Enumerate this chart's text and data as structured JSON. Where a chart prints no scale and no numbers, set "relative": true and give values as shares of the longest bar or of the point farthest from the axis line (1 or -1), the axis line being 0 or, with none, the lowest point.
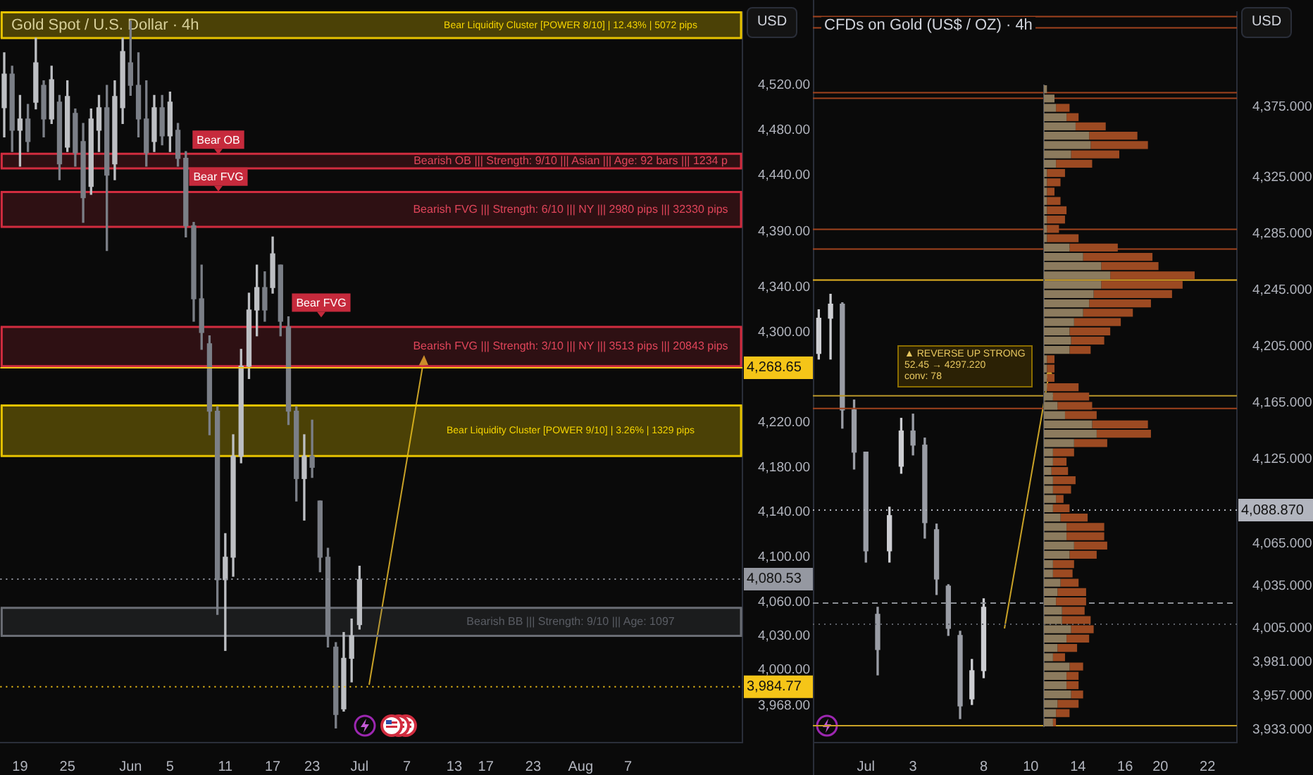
{
  "chart_data": [
    {
      "type": "candlestick",
      "title": "Gold Spot / U.S. Dollar · 4h",
      "ylabel": "USD",
      "colors": [
        "#bdbfc3",
        "#7b7f87",
        "#bdbfc3",
        "#7b7f87",
        "#bdbfc3",
        "#7b7f87",
        "#bdbfc3",
        "#7b7f87",
        "#bdbfc3",
        "#7b7f87",
        "#7b7f87",
        "#bdbfc3",
        "#bdbfc3",
        "#7b7f87",
        "#bdbfc3",
        "#bdbfc3",
        "#7b7f87",
        "#7b7f87",
        "#7b7f87",
        "#bdbfc3",
        "#7b7f87",
        "#bdbfc3",
        "#7b7f87",
        "#7b7f87",
        "#7b7f87",
        "#7b7f87",
        "#7b7f87",
        "#7b7f87",
        "#bdbfc3",
        "#bdbfc3",
        "#bdbfc3",
        "#bdbfc3",
        "#bdbfc3",
        "#7b7f87",
        "#bdbfc3",
        "#7b7f87",
        "#7b7f87",
        "#7b7f87",
        "#bdbfc3",
        "#7b7f87",
        "#7b7f87",
        "#7b7f87",
        "#7b7f87",
        "#bdbfc3",
        "#bdbfc3",
        "#bdbfc3",
        null,
        null,
        null,
        null,
        null,
        null,
        null,
        null,
        null,
        null,
        null,
        null,
        null,
        null,
        null,
        null,
        null,
        null,
        null,
        null,
        null,
        null,
        null,
        null,
        null,
        null,
        null,
        null,
        null,
        null,
        null,
        null,
        null,
        null,
        null,
        null,
        null,
        null,
        null,
        null,
        null,
        null,
        null,
        null,
        null,
        null,
        null,
        null
      ],
      "categories": [
        null,
        null,
        "19",
        null,
        null,
        null,
        null,
        null,
        "25",
        null,
        null,
        null,
        null,
        null,
        null,
        null,
        "Jun",
        null,
        null,
        null,
        null,
        "5",
        null,
        null,
        null,
        null,
        null,
        null,
        "11",
        null,
        null,
        null,
        null,
        null,
        "17",
        null,
        null,
        null,
        null,
        "23",
        null,
        null,
        null,
        null,
        null,
        "Jul",
        null,
        null,
        null,
        null,
        null,
        "7",
        null,
        null,
        null,
        null,
        null,
        "13",
        null,
        null,
        null,
        "17",
        null,
        null,
        null,
        null,
        null,
        "23",
        null,
        null,
        null,
        null,
        null,
        "Aug",
        null,
        null,
        null,
        null,
        null,
        "7",
        null,
        null,
        null,
        null,
        null,
        null,
        null,
        null,
        null,
        null,
        null,
        null,
        null,
        null
      ],
      "ohlc": [
        [
          4500,
          4549,
          4474,
          4530
        ],
        [
          4530,
          4537,
          4461,
          4480
        ],
        [
          4480,
          4511,
          4448,
          4490
        ],
        [
          4490,
          4503,
          4461,
          4470
        ],
        [
          4505,
          4562,
          4499,
          4540
        ],
        [
          4520,
          4524,
          4474,
          4490
        ],
        [
          4490,
          4537,
          4486,
          4525
        ],
        [
          4505,
          4511,
          4436,
          4450
        ],
        [
          4465,
          4524,
          4461,
          4510
        ],
        [
          4495,
          4499,
          4448,
          4460
        ],
        [
          4470,
          4486,
          4398,
          4420
        ],
        [
          4430,
          4499,
          4423,
          4490
        ],
        [
          4480,
          4511,
          4461,
          4500
        ],
        [
          4500,
          4520,
          4373,
          4440
        ],
        [
          4450,
          4524,
          4436,
          4510
        ],
        [
          4500,
          4562,
          4486,
          4550
        ],
        [
          4540,
          4577,
          4511,
          4520
        ],
        [
          4520,
          4549,
          4474,
          4490
        ],
        [
          4490,
          4524,
          4448,
          4460
        ],
        [
          4470,
          4511,
          4461,
          4500
        ],
        [
          4500,
          4511,
          4467,
          4475
        ],
        [
          4475,
          4514,
          4461,
          4505
        ],
        [
          4480,
          4486,
          4448,
          4455
        ],
        [
          4455,
          4461,
          4385,
          4395
        ],
        [
          4395,
          4398,
          4310,
          4330
        ],
        [
          4330,
          4360,
          4285,
          4300
        ],
        [
          4290,
          4297,
          4209,
          4230
        ],
        [
          4230,
          4234,
          4049,
          4080
        ],
        [
          4080,
          4121,
          4017,
          4100
        ],
        [
          4100,
          4209,
          4083,
          4190
        ],
        [
          4190,
          4285,
          4184,
          4270
        ],
        [
          4270,
          4335,
          4259,
          4320
        ],
        [
          4320,
          4360,
          4297,
          4340
        ],
        [
          4340,
          4354,
          4310,
          4320
        ],
        [
          4340,
          4385,
          4335,
          4370
        ],
        [
          4360,
          4360,
          4297,
          4310
        ],
        [
          4305,
          4314,
          4218,
          4230
        ],
        [
          4230,
          4234,
          4150,
          4170
        ],
        [
          4170,
          4209,
          4133,
          4190
        ],
        [
          4190,
          4222,
          4171,
          4180
        ],
        [
          4150,
          4150,
          4087,
          4100
        ],
        [
          4100,
          4108,
          4020,
          4030
        ],
        [
          4020,
          4024,
          3948,
          3960
        ],
        [
          3965,
          4033,
          3963,
          4010
        ],
        [
          4010,
          4045,
          3989,
          4030
        ],
        [
          4040,
          4092,
          4036,
          4080
        ],
        null,
        null,
        null,
        null,
        null,
        null,
        null,
        null,
        null,
        null,
        null,
        null,
        null,
        null,
        null,
        null,
        null,
        null,
        null,
        null,
        null,
        null,
        null,
        null,
        null,
        null,
        null,
        null,
        null,
        null,
        null,
        null,
        null,
        null,
        null,
        null,
        null,
        null,
        null,
        null,
        null,
        null,
        null,
        null,
        null,
        null,
        null,
        null
      ],
      "ylim": [
        3935,
        4585
      ],
      "yticks": [
        {
          "value": 3968,
          "label": "3,968.00"
        },
        {
          "value": 4000,
          "label": "4,000.00"
        },
        {
          "value": 4030,
          "label": "4,030.00"
        },
        {
          "value": 4060,
          "label": "4,060.00"
        },
        {
          "value": 4100,
          "label": "4,100.00"
        },
        {
          "value": 4140,
          "label": "4,140.00"
        },
        {
          "value": 4180,
          "label": "4,180.00"
        },
        {
          "value": 4220,
          "label": "4,220.00"
        },
        {
          "value": 4300,
          "label": "4,300.00"
        },
        {
          "value": 4340,
          "label": "4,340.00"
        },
        {
          "value": 4390,
          "label": "4,390.00"
        },
        {
          "value": 4440,
          "label": "4,440.00"
        },
        {
          "value": 4480,
          "label": "4,480.00"
        },
        {
          "value": 4520,
          "label": "4,520.00"
        }
      ],
      "bands": [
        {
          "axis": "y",
          "from": 4562,
          "to": 4585,
          "label": "Bear Liquidity Cluster [POWER 8/10] | 12.43% | 5072 pips",
          "color": "#e6c200"
        },
        {
          "axis": "y",
          "from": 4446,
          "to": 4459,
          "label": "Bearish OB ||| Strength: 9/10 ||| Asian ||| Age: 92 bars ||| 1234 p",
          "color": "#d12c3f"
        },
        {
          "axis": "y",
          "from": 4394,
          "to": 4425,
          "label": "Bearish FVG ||| Strength: 6/10 ||| NY ||| 2980 pips ||| 32330 pips",
          "color": "#d12c3f"
        },
        {
          "axis": "y",
          "from": 4270,
          "to": 4305,
          "label": "Bearish FVG ||| Strength: 3/10 ||| NY ||| 3513 pips ||| 20843 pips",
          "color": "#d12c3f"
        },
        {
          "axis": "y",
          "from": 4190,
          "to": 4235,
          "label": "Bear Liquidity Cluster [POWER 9/10] | 3.26% | 1329 pips",
          "color": "#e6c200"
        },
        {
          "axis": "y",
          "from": 4030,
          "to": 4055,
          "label": "Bearish BB ||| Strength: 9/10 ||| Age: 1097",
          "color": "#6a6d74"
        }
      ],
      "ref_lines": [
        {
          "axis": "y",
          "value": 4080.53,
          "label": "4,080.53",
          "color": "#9598a1",
          "line_style": "dotted"
        },
        {
          "axis": "y",
          "value": 4268.65,
          "label": "4,268.65",
          "color": "#f5c518",
          "line_style": "solid"
        },
        {
          "axis": "y",
          "value": 3984.77,
          "label": "3,984.77",
          "color": "#f5c518",
          "line_style": "dotted"
        }
      ],
      "annotations": [
        {
          "text": "Bear OB",
          "y": 4471
        },
        {
          "text": "Bear FVG",
          "y": 4438
        },
        {
          "text": "Bear FVG",
          "y": 4326
        }
      ]
    },
    {
      "type": "candlestick",
      "title": "CFDs on Gold (US$ / OZ) · 4h",
      "ylabel": "USD",
      "colors": [
        "#cdced2",
        "#cdced2",
        "#9a9da5",
        "#9a9da5",
        "#9a9da5",
        "#9a9da5",
        "#cdced2",
        "#cdced2",
        "#9a9da5",
        "#9a9da5",
        "#9a9da5",
        "#9a9da5",
        "#9a9da5",
        "#cdced2",
        "#cdced2",
        null,
        null,
        null,
        null,
        null,
        null,
        null,
        null,
        null,
        null,
        null,
        null,
        null,
        null,
        null,
        null,
        null,
        null,
        null,
        null,
        null
      ],
      "categories": [
        null,
        null,
        null,
        null,
        "Jul",
        null,
        null,
        null,
        "3",
        null,
        null,
        null,
        null,
        null,
        "8",
        null,
        null,
        null,
        "10",
        null,
        null,
        null,
        "14",
        null,
        null,
        null,
        "16",
        null,
        null,
        "20",
        null,
        null,
        null,
        "22",
        null,
        null
      ],
      "ohlc": [
        [
          4200,
          4231,
          4196,
          4225
        ],
        [
          4225,
          4242,
          4196,
          4235
        ],
        [
          4235,
          4236,
          4147,
          4160
        ],
        [
          4160,
          4167,
          4118,
          4130
        ],
        [
          4130,
          4130,
          4052,
          4060
        ],
        [
          4015,
          4020,
          3972,
          3990
        ],
        [
          4060,
          4091,
          4052,
          4085
        ],
        [
          4120,
          4154,
          4115,
          4145
        ],
        [
          4145,
          4157,
          4128,
          4135
        ],
        [
          4135,
          4140,
          4069,
          4080
        ],
        [
          4075,
          4079,
          4029,
          4040
        ],
        [
          4035,
          4036,
          4000,
          4005
        ],
        [
          4000,
          4003,
          3941,
          3950
        ],
        [
          3955,
          3983,
          3951,
          3975
        ],
        [
          3975,
          4026,
          3970,
          4020
        ],
        null,
        null,
        null,
        null,
        null,
        null,
        null,
        null,
        null,
        null,
        null,
        null,
        null,
        null,
        null,
        null,
        null,
        null,
        null,
        null,
        null
      ],
      "ylim": [
        3924,
        4442
      ],
      "yticks": [
        {
          "value": 3933,
          "label": "3,933.000"
        },
        {
          "value": 3957,
          "label": "3,957.000"
        },
        {
          "value": 3981,
          "label": "3,981.000"
        },
        {
          "value": 4005,
          "label": "4,005.000"
        },
        {
          "value": 4035,
          "label": "4,035.000"
        },
        {
          "value": 4065,
          "label": "4,065.000"
        },
        {
          "value": 4125,
          "label": "4,125.000"
        },
        {
          "value": 4165,
          "label": "4,165.000"
        },
        {
          "value": 4205,
          "label": "4,205.000"
        },
        {
          "value": 4245,
          "label": "4,245.000"
        },
        {
          "value": 4285,
          "label": "4,285.000"
        },
        {
          "value": 4325,
          "label": "4,325.000"
        },
        {
          "value": 4375,
          "label": "4,375.000"
        }
      ],
      "ref_lines": [
        {
          "axis": "y",
          "value": 4439,
          "color": "#a0431e",
          "line_style": "solid"
        },
        {
          "axis": "y",
          "value": 4431,
          "color": "#a0431e",
          "line_style": "solid"
        },
        {
          "axis": "y",
          "value": 4385,
          "color": "#a0431e",
          "line_style": "solid"
        },
        {
          "axis": "y",
          "value": 4381,
          "color": "#a0431e",
          "line_style": "solid"
        },
        {
          "axis": "y",
          "value": 4288,
          "color": "#a0431e",
          "line_style": "solid"
        },
        {
          "axis": "y",
          "value": 4274,
          "color": "#a0431e",
          "line_style": "solid"
        },
        {
          "axis": "y",
          "value": 4252,
          "color": "#e6b422",
          "line_style": "solid"
        },
        {
          "axis": "y",
          "value": 4170,
          "color": "#b8962a",
          "line_style": "solid"
        },
        {
          "axis": "y",
          "value": 4161,
          "color": "#a0431e",
          "line_style": "solid"
        },
        {
          "axis": "y",
          "value": 4088.87,
          "label": "4,088.870",
          "color": "#b2b5be",
          "line_style": "dotted"
        },
        {
          "axis": "y",
          "value": 4023,
          "color": "#8a8d93",
          "line_style": "dashed"
        },
        {
          "axis": "y",
          "value": 4008,
          "color": "#5d6068",
          "line_style": "dotted"
        },
        {
          "axis": "y",
          "value": 3936,
          "color": "#c9a227",
          "line_style": "solid"
        }
      ],
      "annotations": [
        "▲ REVERSE UP STRONG",
        "52.45 → 4297.220",
        "conv: 78"
      ]
    },
    {
      "type": "bar",
      "orientation": "horizontal",
      "stacked": true,
      "relative": true,
      "categories": [
        null,
        null,
        null,
        null,
        null,
        null,
        null,
        null,
        null,
        null,
        null,
        null,
        null,
        null,
        null,
        null,
        null,
        null,
        null,
        null,
        null,
        null,
        null,
        null,
        null,
        null,
        null,
        null,
        null,
        null,
        null,
        null,
        null,
        null,
        null,
        null,
        null,
        null,
        null,
        null,
        null,
        null,
        null,
        null,
        null,
        null,
        null,
        null,
        null,
        null,
        null,
        null,
        null,
        null,
        null,
        null,
        null,
        null,
        null,
        null,
        null,
        null,
        null,
        null,
        null,
        null,
        null,
        null,
        null
      ],
      "series": [
        {
          "color": "#8c7b5e",
          "values": [
            0.02,
            0.07,
            0.08,
            0.15,
            0.21,
            0.3,
            0.31,
            0.18,
            0.08,
            0.02,
            0.02,
            0.02,
            0.02,
            0.02,
            0.02,
            0.02,
            0.02,
            0.17,
            0.26,
            0.38,
            0.44,
            0.38,
            0.33,
            0.3,
            0.26,
            0.2,
            0.17,
            0.18,
            0.17,
            0.02,
            0.02,
            0.02,
            0.02,
            0.06,
            0.09,
            0.14,
            0.32,
            0.35,
            0.2,
            0.06,
            0.06,
            0.05,
            0.06,
            0.06,
            0.08,
            0.06,
            0.11,
            0.15,
            0.15,
            0.2,
            0.17,
            0.06,
            0.06,
            0.11,
            0.09,
            0.08,
            0.12,
            0.12,
            0.18,
            0.15,
            0.09,
            0.06,
            0.17,
            0.15,
            0.15,
            0.18,
            0.09,
            0.08,
            0.06
          ]
        },
        {
          "color": "#9c4a22",
          "values": [
            0,
            0,
            0.09,
            0.08,
            0.2,
            0.32,
            0.38,
            0.32,
            0.24,
            0.12,
            0.09,
            0.05,
            0.09,
            0.13,
            0.12,
            0.08,
            0.21,
            0.32,
            0.46,
            0.38,
            0.56,
            0.54,
            0.52,
            0.41,
            0.33,
            0.31,
            0.27,
            0.22,
            0.14,
            0.05,
            0.05,
            0.05,
            0.21,
            0.24,
            0.23,
            0.21,
            0.37,
            0.36,
            0.22,
            0.14,
            0.09,
            0.11,
            0.15,
            0.12,
            0.05,
            0.11,
            0.18,
            0.25,
            0.25,
            0.22,
            0.18,
            0.14,
            0.13,
            0.12,
            0.19,
            0.2,
            0.15,
            0.19,
            0.15,
            0.15,
            0.13,
            0.08,
            0.09,
            0.08,
            0.08,
            0.08,
            0.14,
            0.09,
            0.02
          ]
        }
      ]
    }
  ]
}
